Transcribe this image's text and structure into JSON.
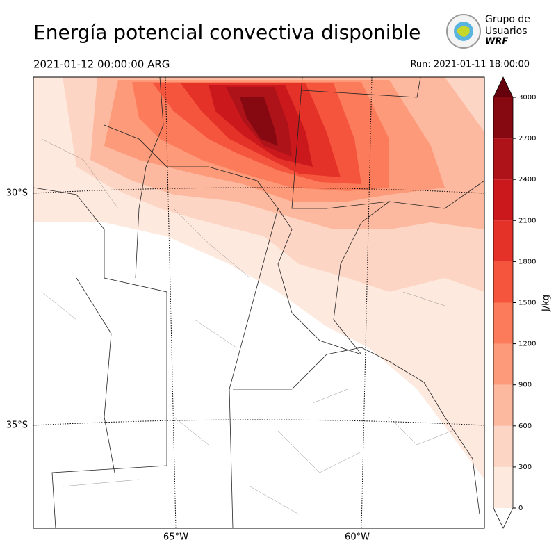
{
  "header": {
    "title": "Energía potencial convectiva disponible",
    "valid_time": "2021-01-12 00:00:00 ARG",
    "run": "Run: 2021-01-11 18:00:00"
  },
  "logo": {
    "line1": "Grupo de",
    "line2": "Usuarios",
    "line3": "WRF"
  },
  "map": {
    "lat_labels": [
      "30°S",
      "35°S"
    ],
    "lon_labels": [
      "65°W",
      "60°W"
    ]
  },
  "colorbar": {
    "label": "J/kg",
    "ticks": [
      0,
      300,
      600,
      900,
      1200,
      1500,
      1800,
      2100,
      2400,
      2700,
      3000
    ],
    "colors": [
      "#fee9df",
      "#fdd5c4",
      "#fcb99f",
      "#fc9a7a",
      "#fb7b5b",
      "#f5553d",
      "#e53228",
      "#cb181d",
      "#ae1319",
      "#860811"
    ],
    "extend_color": "#67000d"
  }
}
